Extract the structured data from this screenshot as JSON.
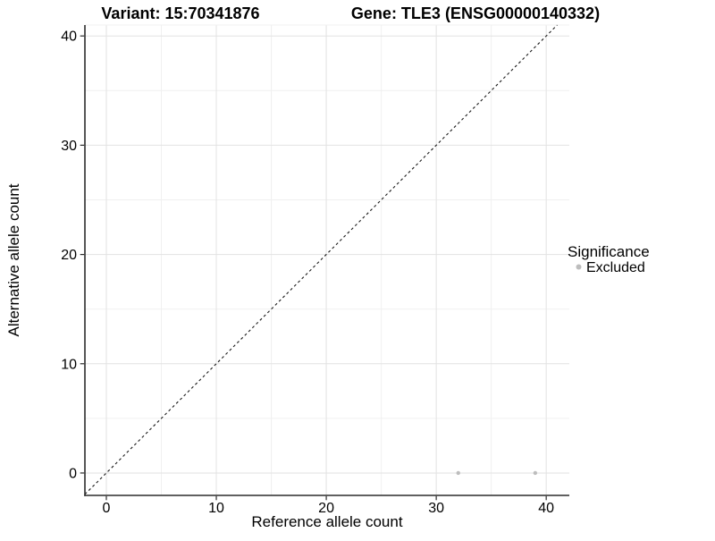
{
  "page": {
    "background": "#ffffff"
  },
  "chart_data": {
    "type": "scatter",
    "titles": {
      "left": "Variant: 15:70341876",
      "right": "Gene: TLE3 (ENSG00000140332)"
    },
    "xlabel": "Reference allele count",
    "ylabel": "Alternative allele count",
    "xlim": [
      -1.95,
      42.1
    ],
    "ylim": [
      -2.05,
      41.0
    ],
    "xticks": [
      0,
      10,
      20,
      30,
      40
    ],
    "yticks": [
      0,
      10,
      20,
      30,
      40
    ],
    "x_minor_breaks": [
      5,
      15,
      25,
      35
    ],
    "y_minor_breaks": [
      5,
      15,
      25,
      35
    ],
    "grid": "major+minor",
    "legend_position": "right",
    "identity_line": {
      "slope": 1,
      "intercept": 0,
      "style": "dashed",
      "color": "#1a1a1a"
    },
    "series": [
      {
        "name": "Excluded",
        "color": "#bdbdbd",
        "marker": "circle",
        "points": [
          {
            "x": 32,
            "y": 0
          },
          {
            "x": 39,
            "y": 0
          }
        ]
      }
    ],
    "legend": {
      "title": "Significance",
      "items": [
        {
          "label": "Excluded",
          "color": "#bdbdbd"
        }
      ]
    },
    "colors": {
      "grid_major": "#e2e2e2",
      "grid_minor": "#f0f0f0",
      "axis_line": "#2b2b2b",
      "text": "#000000",
      "point": "#bdbdbd",
      "background": "#ffffff"
    }
  }
}
